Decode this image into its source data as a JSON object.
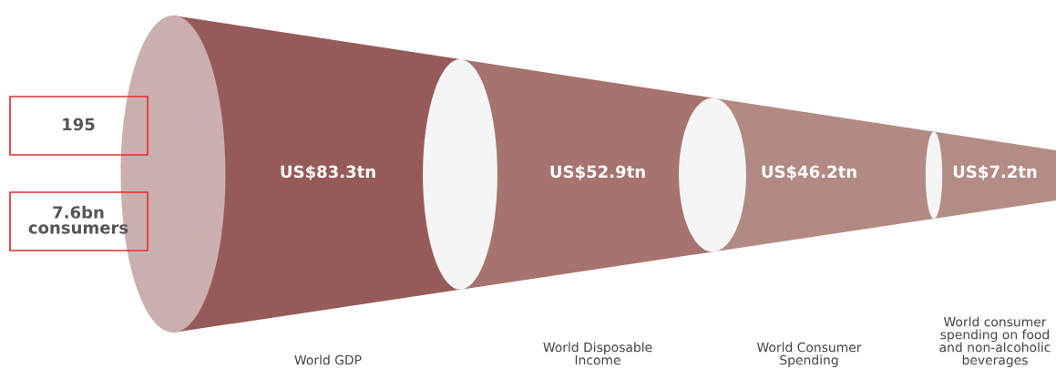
{
  "chart_data": {
    "type": "other",
    "categories": [
      "World GDP",
      "World Disposable\nIncome",
      "World Consumer\nSpending",
      "World consumer\nspending on food\nand non-alcoholic\nbeverages"
    ],
    "values": [
      83.3,
      52.9,
      46.2,
      7.2
    ],
    "value_labels": [
      "US$83.3tn",
      "US$52.9tn",
      "US$46.2tn",
      "US$7.2tn"
    ],
    "colors": [
      "#965b59",
      "#a6736e",
      "#b28a83",
      "#b48c86"
    ],
    "annotations": [
      "195",
      "7.6bn\nconsumers"
    ]
  }
}
